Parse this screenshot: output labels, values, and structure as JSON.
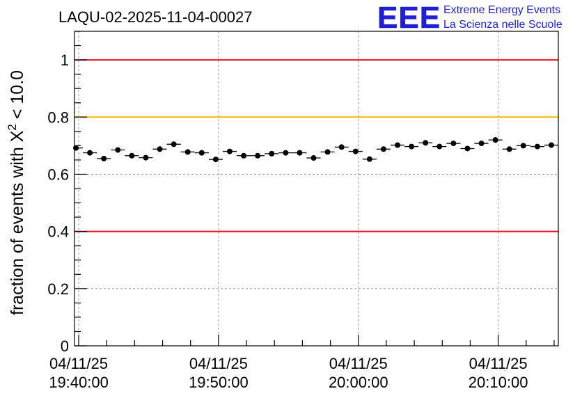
{
  "chart_data": {
    "type": "scatter",
    "title": "LAQU-02-2025-11-04-00027",
    "ylabel": {
      "prefix": "fraction of events with ",
      "symbol": "X",
      "superscript": "2",
      "suffix": " < 10.0"
    },
    "xlabel": "",
    "ylim": [
      0,
      1.1
    ],
    "xlim_minutes": [
      -0.3,
      34.3
    ],
    "x_unit": "minutes since 04/11/25 19:40:00",
    "y_ticks": [
      "0",
      "0.2",
      "0.4",
      "0.6",
      "0.8",
      "1"
    ],
    "y_tick_values": [
      0,
      0.2,
      0.4,
      0.6,
      0.8,
      1.0
    ],
    "x_ticks": [
      {
        "minutes": 0,
        "date": "04/11/25",
        "time": "19:40:00"
      },
      {
        "minutes": 10,
        "date": "04/11/25",
        "time": "19:50:00"
      },
      {
        "minutes": 20,
        "date": "04/11/25",
        "time": "20:00:00"
      },
      {
        "minutes": 30,
        "date": "04/11/25",
        "time": "20:10:00"
      }
    ],
    "reference_lines": [
      {
        "y": 1.0,
        "color": "#e8141c"
      },
      {
        "y": 0.8,
        "color": "#f5b800"
      },
      {
        "y": 0.4,
        "color": "#e8141c"
      }
    ],
    "grid": true,
    "bin_width_minutes": 1,
    "series": [
      {
        "name": "fraction",
        "x": [
          -0.2,
          0.8,
          1.8,
          2.8,
          3.8,
          4.8,
          5.8,
          6.8,
          7.8,
          8.8,
          9.8,
          10.8,
          11.8,
          12.8,
          13.8,
          14.8,
          15.8,
          16.8,
          17.8,
          18.8,
          19.8,
          20.8,
          21.8,
          22.8,
          23.8,
          24.8,
          25.8,
          26.8,
          27.8,
          28.8,
          29.8,
          30.8,
          31.8,
          32.8,
          33.8
        ],
        "values": [
          0.692,
          0.675,
          0.655,
          0.685,
          0.665,
          0.658,
          0.688,
          0.705,
          0.678,
          0.675,
          0.652,
          0.68,
          0.665,
          0.665,
          0.672,
          0.675,
          0.675,
          0.657,
          0.678,
          0.695,
          0.68,
          0.653,
          0.688,
          0.702,
          0.697,
          0.71,
          0.697,
          0.708,
          0.69,
          0.708,
          0.72,
          0.688,
          0.7,
          0.697,
          0.702
        ],
        "errors": [
          0.008,
          0.008,
          0.008,
          0.008,
          0.008,
          0.008,
          0.008,
          0.008,
          0.008,
          0.008,
          0.008,
          0.008,
          0.008,
          0.008,
          0.008,
          0.008,
          0.008,
          0.008,
          0.008,
          0.008,
          0.008,
          0.008,
          0.008,
          0.008,
          0.008,
          0.008,
          0.008,
          0.008,
          0.008,
          0.008,
          0.008,
          0.008,
          0.008,
          0.008,
          0.008
        ]
      }
    ]
  },
  "logo": {
    "letters": "EEE",
    "line1": "Extreme Energy Events",
    "line2": "La Scienza nelle Scuole",
    "color": "#1f1fd6"
  }
}
